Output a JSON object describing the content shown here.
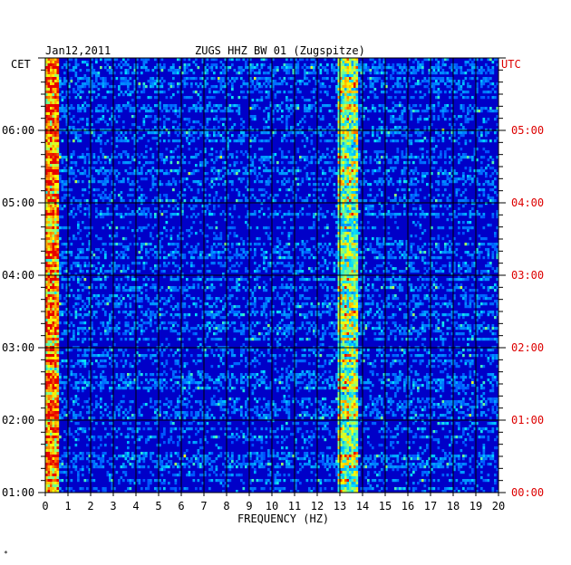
{
  "chart_data": {
    "type": "heatmap",
    "title": "ZUGS HHZ BW 01 (Zugspitze)",
    "date": "Jan12,2011",
    "left_axis_title": "CET",
    "right_axis_title": "UTC",
    "xlabel": "FREQUENCY (HZ)",
    "xlim": [
      0,
      20
    ],
    "x_ticks": [
      0,
      1,
      2,
      3,
      4,
      5,
      6,
      7,
      8,
      9,
      10,
      11,
      12,
      13,
      14,
      15,
      16,
      17,
      18,
      19,
      20
    ],
    "x_tick_labels": [
      "0",
      "1",
      "2",
      "3",
      "4",
      "5",
      "6",
      "7",
      "8",
      "9",
      "10",
      "11",
      "12",
      "13",
      "14",
      "15",
      "16",
      "17",
      "18",
      "19",
      "20"
    ],
    "ylim_hours": [
      1.0,
      7.0
    ],
    "cet_ticks": [
      {
        "hour": 1,
        "label": "01:00"
      },
      {
        "hour": 2,
        "label": "02:00"
      },
      {
        "hour": 3,
        "label": "03:00"
      },
      {
        "hour": 4,
        "label": "04:00"
      },
      {
        "hour": 5,
        "label": "05:00"
      },
      {
        "hour": 6,
        "label": "06:00"
      }
    ],
    "utc_ticks": [
      {
        "hour": 1,
        "label": "00:00"
      },
      {
        "hour": 2,
        "label": "01:00"
      },
      {
        "hour": 3,
        "label": "02:00"
      },
      {
        "hour": 4,
        "label": "03:00"
      },
      {
        "hour": 5,
        "label": "04:00"
      },
      {
        "hour": 6,
        "label": "05:00"
      }
    ],
    "features": [
      {
        "freq_range": [
          0.0,
          0.6
        ],
        "description": "strong low-frequency energy"
      },
      {
        "freq_range": [
          12.9,
          13.8
        ],
        "description": "persistent band"
      }
    ],
    "grid": true,
    "colors": {
      "background": "#0000c8",
      "grid": "#000000",
      "cet_text": "#000000",
      "utc_text": "#dd0000"
    }
  },
  "footer_mark": "*"
}
